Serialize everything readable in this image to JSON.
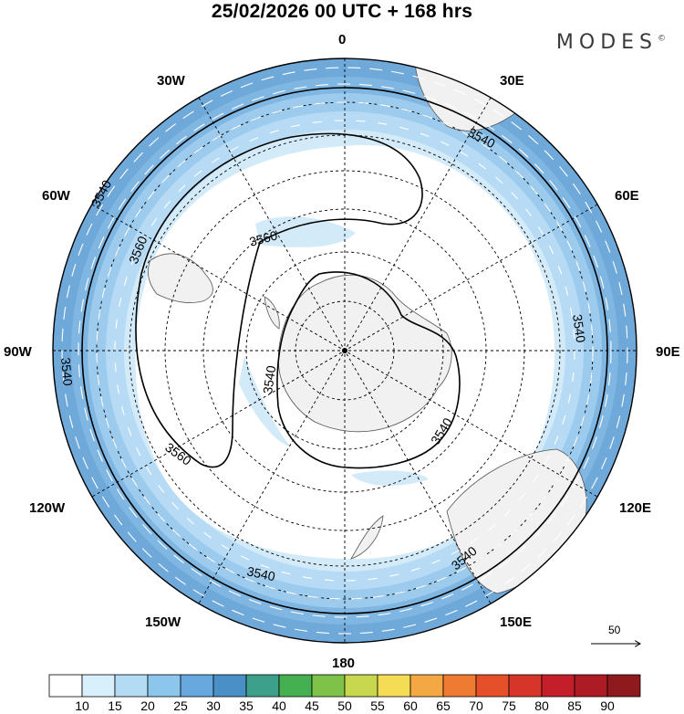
{
  "title": "25/02/2026  00 UTC  + 168 hrs",
  "brand": {
    "name": "MODES",
    "mark": "©"
  },
  "longitude_labels": {
    "top": "0",
    "bottom": "180",
    "left": "90W",
    "right": "90E",
    "w30": "30W",
    "e30": "30E",
    "w60": "60W",
    "e60": "60E",
    "w120": "120W",
    "e120": "120E",
    "w150": "150W",
    "e150": "150E"
  },
  "contour_labels": {
    "c3540": "3540",
    "c3560": "3560"
  },
  "vector_scale": {
    "label": "50"
  },
  "colorbar": {
    "labels": [
      "10",
      "15",
      "20",
      "25",
      "30",
      "35",
      "40",
      "45",
      "50",
      "55",
      "60",
      "65",
      "70",
      "75",
      "80",
      "85",
      "90"
    ],
    "colors": [
      "#ffffff",
      "#d8f0fb",
      "#b3dcf4",
      "#8cc6ec",
      "#67a9de",
      "#4a8fc6",
      "#3da08a",
      "#45b052",
      "#7fc24a",
      "#c8d84e",
      "#f5dc55",
      "#f4a843",
      "#ef7b32",
      "#e5502a",
      "#d8352a",
      "#c41e2a",
      "#ad1b25",
      "#8e1a1e"
    ]
  },
  "colors": {
    "ocean_band_outer": "#6fa9da",
    "ocean_band_mid": "#9ccbee",
    "ocean_band_inner": "#c6e4f7",
    "land": "#f1f1f1"
  }
}
